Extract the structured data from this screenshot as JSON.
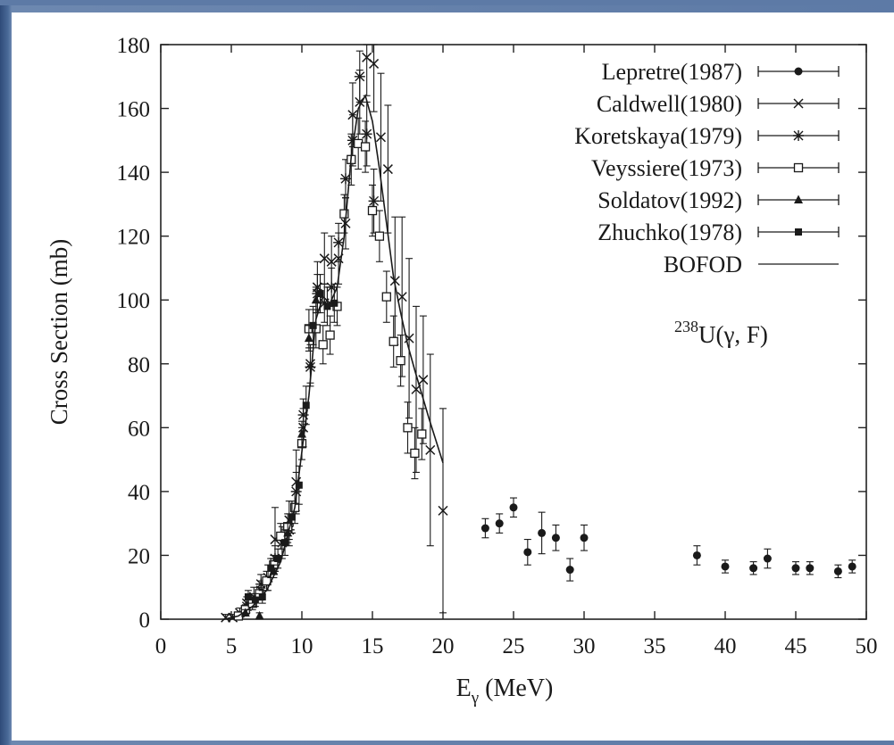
{
  "chart_data": {
    "type": "scatter",
    "xlabel_main": "E",
    "xlabel_sub": "γ",
    "xlabel_unit": " (MeV)",
    "ylabel": "Cross Section (mb)",
    "xlim": [
      0,
      50
    ],
    "ylim": [
      0,
      180
    ],
    "x_ticks": [
      0,
      5,
      10,
      15,
      20,
      25,
      30,
      35,
      40,
      45,
      50
    ],
    "y_ticks": [
      0,
      20,
      40,
      60,
      80,
      100,
      120,
      140,
      160,
      180
    ],
    "annotation": {
      "sup": "238",
      "text": "U(γ, F)"
    },
    "legend_position": "top-right",
    "series": [
      {
        "name": "Lepretre(1987)",
        "marker": "dot",
        "points": [
          [
            23,
            28.5,
            3
          ],
          [
            24,
            30,
            3
          ],
          [
            25,
            35,
            3
          ],
          [
            26,
            21,
            4
          ],
          [
            27,
            27,
            6.5
          ],
          [
            28,
            25.5,
            4
          ],
          [
            29,
            15.5,
            3.5
          ],
          [
            30,
            25.5,
            4
          ],
          [
            38,
            20,
            3
          ],
          [
            40,
            16.5,
            2
          ],
          [
            42,
            16,
            2
          ],
          [
            43,
            19,
            3
          ],
          [
            45,
            16,
            2
          ],
          [
            46,
            16,
            2
          ],
          [
            48,
            15,
            2
          ],
          [
            49,
            16.5,
            2
          ]
        ]
      },
      {
        "name": "Caldwell(1980)",
        "marker": "x",
        "points": [
          [
            4.6,
            0.5,
            1
          ],
          [
            5.1,
            0.5,
            1
          ],
          [
            5.6,
            2,
            1.5
          ],
          [
            6.1,
            5,
            2
          ],
          [
            6.6,
            7,
            3
          ],
          [
            7.1,
            9,
            3
          ],
          [
            7.6,
            13,
            4
          ],
          [
            8.1,
            25,
            10
          ],
          [
            8.6,
            24,
            5
          ],
          [
            9.1,
            31,
            6
          ],
          [
            9.6,
            43,
            10
          ],
          [
            10.1,
            60,
            6
          ],
          [
            10.6,
            80,
            6
          ],
          [
            11.1,
            104,
            8
          ],
          [
            11.6,
            113,
            8
          ],
          [
            12.1,
            112,
            8
          ],
          [
            12.6,
            113,
            8
          ],
          [
            13.1,
            124,
            8
          ],
          [
            13.6,
            158,
            10
          ],
          [
            14.1,
            162,
            10
          ],
          [
            14.6,
            176,
            12
          ],
          [
            15.1,
            174,
            15
          ],
          [
            15.6,
            151,
            20
          ],
          [
            16.1,
            141,
            20
          ],
          [
            16.6,
            106,
            20
          ],
          [
            17.1,
            101,
            25
          ],
          [
            17.6,
            88,
            25
          ],
          [
            18.1,
            72,
            26
          ],
          [
            18.6,
            75,
            20
          ],
          [
            19.1,
            53,
            30
          ],
          [
            20,
            34,
            32
          ]
        ]
      },
      {
        "name": "Koretskaya(1979)",
        "marker": "star",
        "points": [
          [
            6.1,
            4,
            2
          ],
          [
            7.1,
            11,
            3
          ],
          [
            8.1,
            19,
            4
          ],
          [
            9.1,
            28,
            5
          ],
          [
            9.6,
            40,
            6
          ],
          [
            10.1,
            64,
            5
          ],
          [
            10.6,
            79,
            6
          ],
          [
            11.1,
            102,
            6
          ],
          [
            11.6,
            99,
            6
          ],
          [
            12.1,
            104,
            6
          ],
          [
            12.6,
            118,
            6
          ],
          [
            13.1,
            138,
            6
          ],
          [
            13.6,
            150,
            8
          ],
          [
            14.1,
            170,
            8
          ],
          [
            14.6,
            152,
            10
          ],
          [
            15.1,
            131,
            10
          ]
        ]
      },
      {
        "name": "Veyssiere(1973)",
        "marker": "square-open",
        "points": [
          [
            5.5,
            1,
            1
          ],
          [
            6.0,
            3,
            1.5
          ],
          [
            6.5,
            5,
            2
          ],
          [
            7.0,
            8,
            2
          ],
          [
            7.5,
            12,
            3
          ],
          [
            8.0,
            17,
            3
          ],
          [
            8.5,
            26,
            4
          ],
          [
            9.0,
            29,
            4
          ],
          [
            9.5,
            35,
            5
          ],
          [
            10.0,
            55,
            5
          ],
          [
            10.5,
            91,
            6
          ],
          [
            11.0,
            91,
            6
          ],
          [
            11.5,
            86,
            6
          ],
          [
            12.0,
            89,
            6
          ],
          [
            12.5,
            98,
            6
          ],
          [
            13.0,
            127,
            6
          ],
          [
            13.5,
            144,
            8
          ],
          [
            14.0,
            149,
            8
          ],
          [
            14.5,
            148,
            8
          ],
          [
            15.0,
            128,
            8
          ],
          [
            15.5,
            120,
            8
          ],
          [
            16.0,
            101,
            8
          ],
          [
            16.5,
            87,
            8
          ],
          [
            17.0,
            81,
            8
          ],
          [
            17.5,
            60,
            8
          ],
          [
            18.0,
            52,
            8
          ],
          [
            18.5,
            58,
            8
          ]
        ]
      },
      {
        "name": "Soldatov(1992)",
        "marker": "triangle",
        "points": [
          [
            6.0,
            2,
            1
          ],
          [
            7.0,
            1,
            1
          ],
          [
            8.0,
            15,
            2
          ],
          [
            9.0,
            27,
            3
          ],
          [
            10.0,
            58,
            4
          ],
          [
            10.5,
            88,
            4
          ],
          [
            11.0,
            100,
            4
          ]
        ]
      },
      {
        "name": "Zhuchko(1978)",
        "marker": "square-filled",
        "points": [
          [
            6.2,
            7,
            2
          ],
          [
            6.7,
            6,
            2
          ],
          [
            7.2,
            7,
            2
          ],
          [
            7.8,
            16,
            3
          ],
          [
            8.3,
            19,
            3
          ],
          [
            8.8,
            24,
            4
          ],
          [
            9.3,
            32,
            5
          ],
          [
            9.8,
            42,
            6
          ],
          [
            10.3,
            67,
            6
          ],
          [
            10.8,
            92,
            6
          ],
          [
            11.3,
            102,
            6
          ],
          [
            11.8,
            98,
            6
          ],
          [
            12.3,
            99,
            6
          ]
        ]
      },
      {
        "name": "BOFOD",
        "marker": "line",
        "points": [
          [
            4.5,
            0
          ],
          [
            5.5,
            1
          ],
          [
            6.5,
            4
          ],
          [
            7.5,
            9
          ],
          [
            8.5,
            18
          ],
          [
            9.5,
            35
          ],
          [
            10.5,
            70
          ],
          [
            11.0,
            94
          ],
          [
            11.5,
            101
          ],
          [
            12.0,
            99
          ],
          [
            12.5,
            104
          ],
          [
            13.0,
            120
          ],
          [
            13.5,
            145
          ],
          [
            14.0,
            160
          ],
          [
            14.5,
            164
          ],
          [
            15.0,
            156
          ],
          [
            15.5,
            141
          ],
          [
            16.0,
            124
          ],
          [
            16.5,
            107
          ],
          [
            17.0,
            96
          ],
          [
            17.5,
            86
          ],
          [
            18.0,
            78
          ],
          [
            19.0,
            63
          ],
          [
            20.0,
            49
          ]
        ]
      }
    ]
  }
}
